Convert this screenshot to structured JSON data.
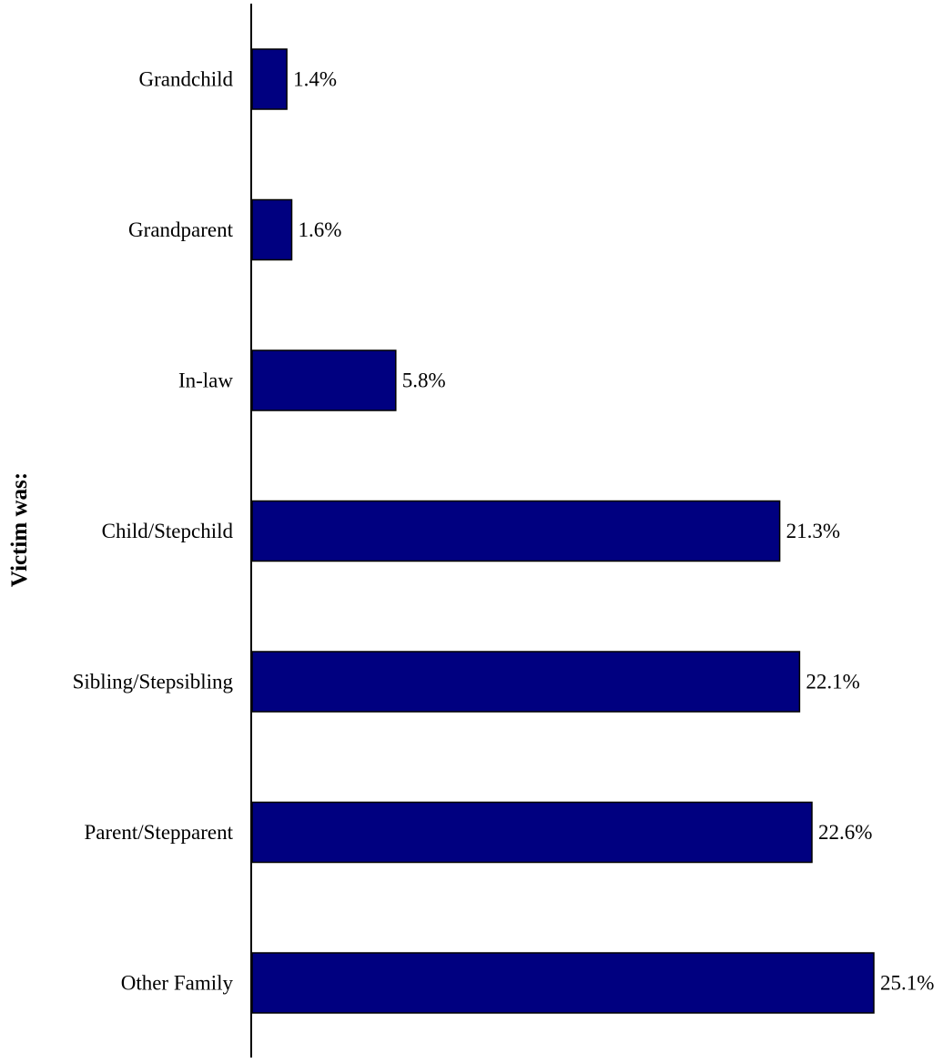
{
  "chart_data": {
    "type": "bar",
    "orientation": "horizontal",
    "title": "",
    "xlabel": "",
    "ylabel": "Victim was:",
    "categories": [
      "Grandchild",
      "Grandparent",
      "In-law",
      "Child/Stepchild",
      "Sibling/Stepsibling",
      "Parent/Stepparent",
      "Other Family"
    ],
    "values": [
      1.4,
      1.6,
      5.8,
      21.3,
      22.1,
      22.6,
      25.1
    ],
    "value_labels": [
      "1.4%",
      "1.6%",
      "5.8%",
      "21.3%",
      "22.1%",
      "22.6%",
      "25.1%"
    ],
    "unit": "%",
    "xlim": [
      0,
      25.1
    ],
    "grid": false,
    "legend": "none",
    "colors": {
      "bar_fill": "#000080",
      "bar_stroke": "#000000",
      "axis": "#000000"
    }
  }
}
